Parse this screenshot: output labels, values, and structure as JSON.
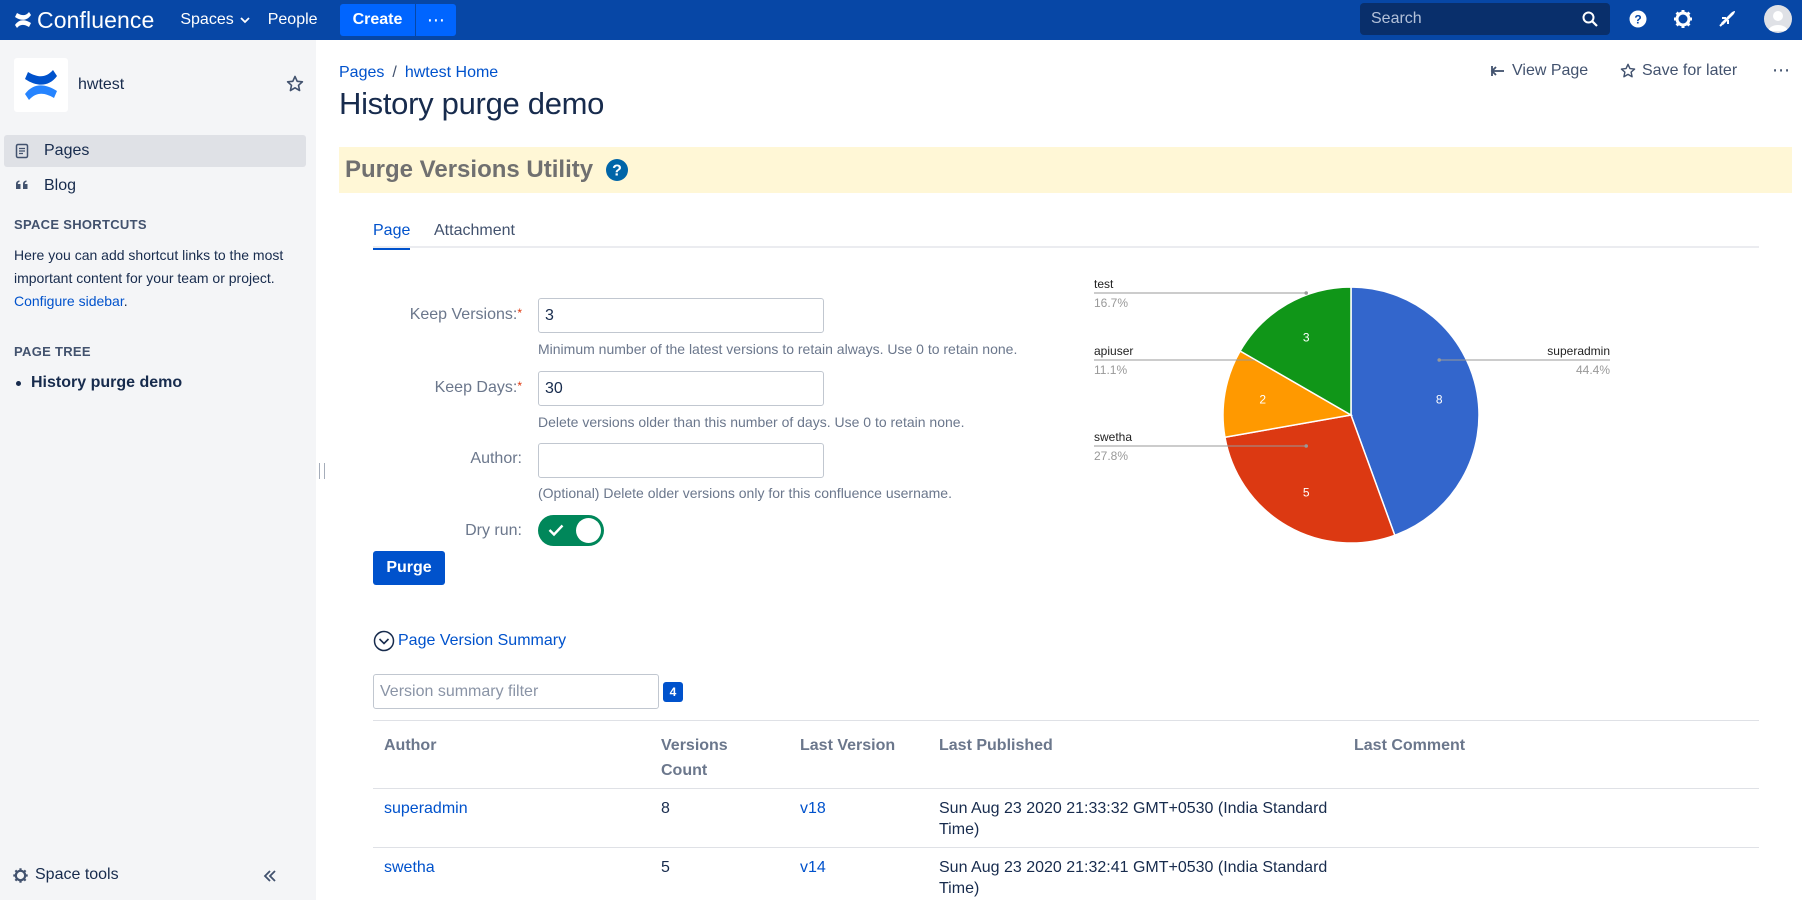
{
  "topnav": {
    "logo_text": "Confluence",
    "spaces_label": "Spaces",
    "people_label": "People",
    "create_label": "Create",
    "more_label": "⋯",
    "search_placeholder": "Search"
  },
  "sidebar": {
    "space_name": "hwtest",
    "items": [
      {
        "label": "Pages",
        "icon": "pages-icon",
        "active": true
      },
      {
        "label": "Blog",
        "icon": "quote-icon",
        "active": false
      }
    ],
    "shortcuts_heading": "SPACE SHORTCUTS",
    "shortcuts_text": "Here you can add shortcut links to the most important content for your team or project.",
    "shortcuts_link": "Configure sidebar",
    "shortcuts_end": ".",
    "page_tree_heading": "PAGE TREE",
    "page_tree_item": "History purge demo",
    "space_tools_label": "Space tools"
  },
  "page": {
    "breadcrumb": [
      "Pages",
      "hwtest Home"
    ],
    "breadcrumb_sep": "/",
    "title": "History purge demo",
    "view_page_label": "View Page",
    "save_label": "Save for later",
    "more_label": "⋯"
  },
  "utility": {
    "title": "Purge Versions Utility",
    "tabs": [
      "Page",
      "Attachment"
    ],
    "form": {
      "keep_versions_label": "Keep Versions:",
      "keep_versions_value": "3",
      "keep_versions_help": "Minimum number of the latest versions to retain always. Use 0 to retain none.",
      "keep_days_label": "Keep Days:",
      "keep_days_value": "30",
      "keep_days_help": "Delete versions older than this number of days. Use 0 to retain none.",
      "author_label": "Author:",
      "author_value": "",
      "author_help": "(Optional) Delete older versions only for this confluence username.",
      "dry_run_label": "Dry run:",
      "dry_run_on": true,
      "required_mark": "*",
      "purge_label": "Purge"
    },
    "summary_toggle": "Page Version Summary",
    "filter_placeholder": "Version summary filter",
    "filter_count": "4",
    "table": {
      "headers": [
        "Author",
        "Versions Count",
        "Last Version",
        "Last Published",
        "Last Comment"
      ],
      "rows": [
        {
          "author": "superadmin",
          "count": "8",
          "version": "v18",
          "published": "Sun Aug 23 2020 21:33:32 GMT+0530 (India Standard Time)",
          "comment": ""
        },
        {
          "author": "swetha",
          "count": "5",
          "version": "v14",
          "published": "Sun Aug 23 2020 21:32:41 GMT+0530 (India Standard Time)",
          "comment": ""
        }
      ]
    }
  },
  "chart_data": {
    "type": "pie",
    "slices": [
      {
        "name": "superadmin",
        "value": 8,
        "percent": "44.4%",
        "color": "#3366cc"
      },
      {
        "name": "swetha",
        "value": 5,
        "percent": "27.8%",
        "color": "#dc3912"
      },
      {
        "name": "apiuser",
        "value": 2,
        "percent": "11.1%",
        "color": "#ff9900"
      },
      {
        "name": "test",
        "value": 3,
        "percent": "16.7%",
        "color": "#109618"
      }
    ]
  },
  "colors": {
    "nav": "#0747a6",
    "primary": "#0052cc",
    "banner": "#fff7d6",
    "toggle_on": "#00875a"
  }
}
